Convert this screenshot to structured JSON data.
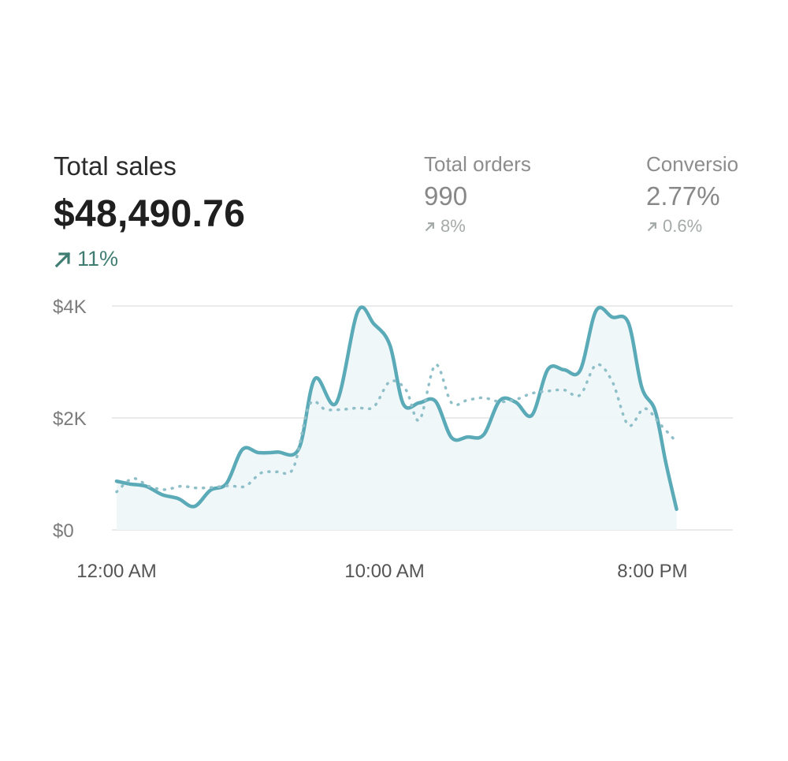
{
  "metrics": {
    "total_sales": {
      "label": "Total sales",
      "value": "$48,490.76",
      "delta": "11%"
    },
    "total_orders": {
      "label": "Total orders",
      "value": "990",
      "delta": "8%"
    },
    "conversion": {
      "label": "Conversio",
      "value": "2.77%",
      "delta": "0.6%"
    }
  },
  "colors": {
    "line": "#5aaab8",
    "dotted": "#8fbfc8",
    "fill": "#eef6f8",
    "grid": "#e4e4e4",
    "positive": "#3f7d72"
  },
  "chart_data": {
    "type": "line",
    "ylim": [
      0,
      4000
    ],
    "y_ticks": [
      {
        "value": 0,
        "label": "$0"
      },
      {
        "value": 2000,
        "label": "$2K"
      },
      {
        "value": 4000,
        "label": "$4K"
      }
    ],
    "xlim": [
      0,
      23
    ],
    "x_ticks": [
      {
        "value": 0,
        "label": "12:00 AM"
      },
      {
        "value": 10,
        "label": "10:00 AM"
      },
      {
        "value": 20,
        "label": "8:00 PM"
      }
    ],
    "grid": true,
    "legend": "none",
    "series": [
      {
        "style": "solid",
        "points": [
          [
            0,
            870
          ],
          [
            0.5,
            820
          ],
          [
            1.1,
            780
          ],
          [
            1.7,
            630
          ],
          [
            2.3,
            560
          ],
          [
            2.9,
            420
          ],
          [
            3.5,
            710
          ],
          [
            4.1,
            830
          ],
          [
            4.7,
            1440
          ],
          [
            5.3,
            1380
          ],
          [
            6.0,
            1390
          ],
          [
            6.8,
            1450
          ],
          [
            7.4,
            2700
          ],
          [
            8.2,
            2270
          ],
          [
            9.0,
            3900
          ],
          [
            9.6,
            3680
          ],
          [
            10.2,
            3300
          ],
          [
            10.7,
            2250
          ],
          [
            11.3,
            2270
          ],
          [
            11.9,
            2300
          ],
          [
            12.5,
            1650
          ],
          [
            13.1,
            1660
          ],
          [
            13.7,
            1700
          ],
          [
            14.3,
            2310
          ],
          [
            14.9,
            2280
          ],
          [
            15.5,
            2050
          ],
          [
            16.1,
            2870
          ],
          [
            16.7,
            2860
          ],
          [
            17.3,
            2850
          ],
          [
            17.9,
            3920
          ],
          [
            18.5,
            3800
          ],
          [
            19.1,
            3700
          ],
          [
            19.6,
            2550
          ],
          [
            20.1,
            2130
          ],
          [
            20.5,
            1200
          ],
          [
            20.9,
            370
          ]
        ]
      },
      {
        "style": "dotted",
        "points": [
          [
            0,
            680
          ],
          [
            0.6,
            920
          ],
          [
            1.2,
            780
          ],
          [
            1.8,
            720
          ],
          [
            2.4,
            780
          ],
          [
            3.0,
            750
          ],
          [
            3.6,
            760
          ],
          [
            4.2,
            790
          ],
          [
            4.8,
            780
          ],
          [
            5.4,
            1020
          ],
          [
            6.0,
            1040
          ],
          [
            6.6,
            1110
          ],
          [
            7.2,
            2240
          ],
          [
            7.8,
            2150
          ],
          [
            8.4,
            2150
          ],
          [
            9.0,
            2180
          ],
          [
            9.6,
            2200
          ],
          [
            10.2,
            2650
          ],
          [
            10.8,
            2500
          ],
          [
            11.3,
            1960
          ],
          [
            11.9,
            2950
          ],
          [
            12.5,
            2270
          ],
          [
            13.1,
            2320
          ],
          [
            13.7,
            2360
          ],
          [
            14.3,
            2290
          ],
          [
            14.9,
            2330
          ],
          [
            15.5,
            2440
          ],
          [
            16.1,
            2480
          ],
          [
            16.7,
            2500
          ],
          [
            17.3,
            2410
          ],
          [
            17.9,
            2950
          ],
          [
            18.5,
            2650
          ],
          [
            19.1,
            1870
          ],
          [
            19.7,
            2170
          ],
          [
            20.3,
            1880
          ],
          [
            20.9,
            1570
          ]
        ]
      }
    ]
  }
}
